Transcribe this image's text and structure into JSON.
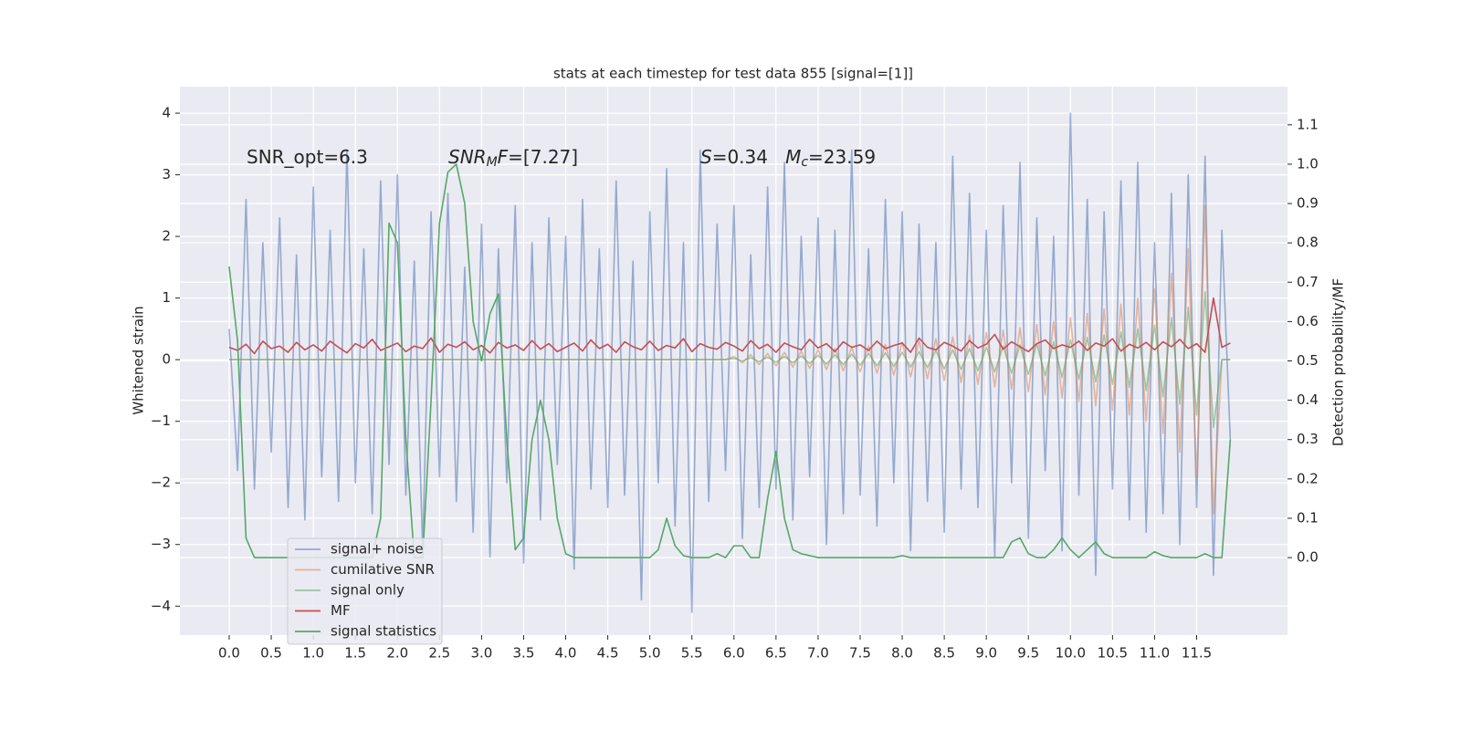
{
  "chart_data": {
    "type": "line",
    "title": "stats at each timestep for test data 855 [signal=[1]]",
    "ylabel": "Whitened strain",
    "y2label": "Detection probability/MF",
    "annotations": [
      [
        {
          "text": "SNR_opt=6.3"
        }
      ],
      [
        {
          "text": "SNR",
          "italic": true
        },
        {
          "text": "M",
          "italic": true,
          "sub": true
        },
        {
          "text": "F",
          "italic": true
        },
        {
          "text": "=[7.27]"
        }
      ],
      [
        {
          "text": "S",
          "italic": true
        },
        {
          "text": "=0.34   "
        },
        {
          "text": "M",
          "italic": true
        },
        {
          "text": "c",
          "italic": true,
          "sub": true
        },
        {
          "text": "=23.59"
        }
      ]
    ],
    "grid": true,
    "x": [
      0,
      0.1,
      0.2,
      0.3,
      0.4,
      0.5,
      0.6,
      0.7,
      0.8,
      0.9,
      1,
      1.1,
      1.2,
      1.3,
      1.4,
      1.5,
      1.6,
      1.7,
      1.8,
      1.9,
      2,
      2.1,
      2.2,
      2.3,
      2.4,
      2.5,
      2.6,
      2.7,
      2.8,
      2.9,
      3,
      3.1,
      3.2,
      3.3,
      3.4,
      3.5,
      3.6,
      3.7,
      3.8,
      3.9,
      4,
      4.1,
      4.2,
      4.3,
      4.4,
      4.5,
      4.6,
      4.7,
      4.8,
      4.9,
      5,
      5.1,
      5.2,
      5.3,
      5.4,
      5.5,
      5.6,
      5.7,
      5.8,
      5.9,
      6,
      6.1,
      6.2,
      6.3,
      6.4,
      6.5,
      6.6,
      6.7,
      6.8,
      6.9,
      7,
      7.1,
      7.2,
      7.3,
      7.4,
      7.5,
      7.6,
      7.7,
      7.8,
      7.9,
      8,
      8.1,
      8.2,
      8.3,
      8.4,
      8.5,
      8.6,
      8.7,
      8.8,
      8.9,
      9,
      9.1,
      9.2,
      9.3,
      9.4,
      9.5,
      9.6,
      9.7,
      9.8,
      9.9,
      10,
      10.1,
      10.2,
      10.3,
      10.4,
      10.5,
      10.6,
      10.7,
      10.8,
      10.9,
      11,
      11.1,
      11.2,
      11.3,
      11.4,
      11.5,
      11.6,
      11.7,
      11.8,
      11.9
    ],
    "series": [
      {
        "name": "signal+ noise",
        "color": "#4c72b0",
        "opacity": 0.55,
        "values": [
          0.5,
          -1.8,
          2.6,
          -2.1,
          1.9,
          -1.5,
          2.3,
          -2.4,
          1.7,
          -2.6,
          2.8,
          -1.9,
          2.1,
          -2.3,
          3.4,
          -2.0,
          1.8,
          -2.5,
          2.9,
          -1.7,
          3.0,
          -2.2,
          1.6,
          -3.1,
          2.4,
          -1.9,
          2.7,
          -2.3,
          1.5,
          -2.8,
          2.2,
          -3.2,
          1.8,
          -2.0,
          2.5,
          -3.3,
          1.9,
          -2.6,
          2.3,
          -1.7,
          2.0,
          -3.4,
          2.6,
          -2.1,
          1.8,
          -2.4,
          2.9,
          -2.2,
          1.6,
          -3.9,
          2.4,
          -2.0,
          3.1,
          -2.7,
          1.9,
          -4.1,
          3.4,
          -2.3,
          2.2,
          -1.8,
          2.5,
          -2.9,
          1.7,
          -2.4,
          2.8,
          -2.1,
          3.2,
          -2.6,
          2.0,
          -1.9,
          2.3,
          -3.0,
          2.1,
          -2.5,
          3.4,
          -2.2,
          1.8,
          -2.7,
          2.6,
          -2.0,
          2.4,
          -3.1,
          2.2,
          -2.3,
          1.9,
          -2.8,
          3.3,
          -2.1,
          2.7,
          -2.4,
          2.1,
          -3.2,
          2.5,
          -2.0,
          3.2,
          -2.9,
          2.3,
          -1.8,
          2.0,
          -3.1,
          4.0,
          -2.2,
          2.6,
          -3.5,
          2.4,
          -2.1,
          2.9,
          -2.6,
          3.2,
          -2.8,
          1.9,
          -2.5,
          2.7,
          -3.0,
          3.0,
          -2.4,
          3.3,
          -3.5,
          2.1,
          -1.3
        ]
      },
      {
        "name": "cumilative SNR",
        "color": "#dd8452",
        "opacity": 0.55,
        "values": [
          0,
          0,
          0,
          0,
          0,
          0,
          0,
          0,
          0,
          0,
          0,
          0,
          0,
          0,
          0,
          0,
          0,
          0,
          0,
          0,
          0,
          0,
          0,
          0,
          0,
          0,
          0,
          0,
          0,
          0,
          0,
          0,
          0,
          0,
          0,
          0,
          0,
          0,
          0,
          0,
          0,
          0,
          0,
          0,
          0,
          0,
          0,
          0,
          0,
          0,
          0,
          0,
          0,
          0,
          0,
          0,
          0,
          0,
          0,
          0,
          0.05,
          -0.05,
          0.08,
          -0.08,
          0.1,
          -0.1,
          0.12,
          -0.12,
          0.14,
          -0.14,
          0.16,
          -0.16,
          0.18,
          -0.18,
          0.2,
          -0.2,
          0.22,
          -0.22,
          0.25,
          -0.25,
          0.28,
          -0.28,
          0.31,
          -0.31,
          0.34,
          -0.34,
          0.37,
          -0.37,
          0.4,
          -0.4,
          0.44,
          -0.44,
          0.48,
          -0.48,
          0.52,
          -0.52,
          0.57,
          -0.57,
          0.62,
          -0.62,
          0.68,
          -0.68,
          0.75,
          -0.75,
          0.82,
          -0.82,
          0.9,
          -0.9,
          1.0,
          -1.0,
          1.15,
          -1.2,
          1.4,
          -1.5,
          1.8,
          -1.9,
          2.5,
          -2.5,
          0,
          0
        ]
      },
      {
        "name": "signal only",
        "color": "#55a868",
        "opacity": 0.55,
        "values": [
          0,
          0,
          0,
          0,
          0,
          0,
          0,
          0,
          0,
          0,
          0,
          0,
          0,
          0,
          0,
          0,
          0,
          0,
          0,
          0,
          0,
          0,
          0,
          0,
          0,
          0,
          0,
          0,
          0,
          0,
          0,
          0,
          0,
          0,
          0,
          0,
          0,
          0,
          0,
          0,
          0,
          0,
          0,
          0,
          0,
          0,
          0,
          0,
          0,
          0,
          0,
          0,
          0,
          0,
          0,
          0,
          0,
          0,
          0,
          0,
          0.02,
          -0.02,
          0.03,
          -0.03,
          0.04,
          -0.04,
          0.05,
          -0.05,
          0.06,
          -0.06,
          0.07,
          -0.07,
          0.08,
          -0.08,
          0.09,
          -0.09,
          0.1,
          -0.1,
          0.11,
          -0.11,
          0.12,
          -0.12,
          0.13,
          -0.13,
          0.15,
          -0.15,
          0.16,
          -0.16,
          0.18,
          -0.18,
          0.2,
          -0.2,
          0.22,
          -0.22,
          0.24,
          -0.24,
          0.26,
          -0.26,
          0.29,
          -0.29,
          0.32,
          -0.32,
          0.36,
          -0.36,
          0.4,
          -0.4,
          0.45,
          -0.45,
          0.5,
          -0.5,
          0.56,
          -0.6,
          0.68,
          -0.72,
          0.85,
          -0.9,
          1.1,
          -1.1,
          0,
          0
        ]
      },
      {
        "name": "MF",
        "color": "#c44e52",
        "opacity": 1,
        "values": [
          0.2,
          0.15,
          0.25,
          0.1,
          0.3,
          0.18,
          0.22,
          0.12,
          0.28,
          0.16,
          0.24,
          0.14,
          0.3,
          0.2,
          0.11,
          0.26,
          0.19,
          0.33,
          0.15,
          0.21,
          0.27,
          0.13,
          0.22,
          0.18,
          0.35,
          0.12,
          0.25,
          0.2,
          0.29,
          0.16,
          0.23,
          0.11,
          0.28,
          0.19,
          0.24,
          0.15,
          0.31,
          0.17,
          0.26,
          0.13,
          0.2,
          0.27,
          0.14,
          0.32,
          0.18,
          0.25,
          0.12,
          0.29,
          0.21,
          0.16,
          0.3,
          0.15,
          0.23,
          0.19,
          0.34,
          0.13,
          0.26,
          0.2,
          0.17,
          0.28,
          0.22,
          0.14,
          0.31,
          0.18,
          0.25,
          0.12,
          0.27,
          0.21,
          0.16,
          0.33,
          0.19,
          0.26,
          0.13,
          0.29,
          0.2,
          0.24,
          0.15,
          0.3,
          0.18,
          0.23,
          0.27,
          0.12,
          0.35,
          0.2,
          0.16,
          0.28,
          0.22,
          0.14,
          0.31,
          0.19,
          0.25,
          0.41,
          0.17,
          0.29,
          0.21,
          0.13,
          0.26,
          0.32,
          0.18,
          0.24,
          0.2,
          0.3,
          0.15,
          0.27,
          0.22,
          0.34,
          0.14,
          0.25,
          0.19,
          0.28,
          0.16,
          0.29,
          0.21,
          0.33,
          0.18,
          0.26,
          0.12,
          1.0,
          0.2,
          0.27
        ]
      },
      {
        "name": "signal statistics",
        "color": "#55a868",
        "opacity": 1,
        "axis": "y2",
        "values": [
          0.74,
          0.55,
          0.05,
          0.0,
          0.0,
          0.0,
          0.0,
          0.0,
          0.0,
          0.0,
          0.0,
          0.0,
          0.0,
          0.0,
          0.0,
          0.0,
          0.0,
          0.0,
          0.1,
          0.85,
          0.8,
          0.3,
          0.0,
          0.0,
          0.4,
          0.85,
          0.98,
          1.0,
          0.9,
          0.6,
          0.5,
          0.62,
          0.67,
          0.3,
          0.02,
          0.05,
          0.3,
          0.4,
          0.3,
          0.1,
          0.01,
          0.0,
          0.0,
          0.0,
          0.0,
          0.0,
          0.0,
          0.0,
          0.0,
          0.0,
          0.0,
          0.02,
          0.1,
          0.03,
          0.005,
          0.0,
          0.0,
          0.0,
          0.01,
          0.0,
          0.03,
          0.03,
          0.0,
          0.0,
          0.15,
          0.27,
          0.1,
          0.02,
          0.01,
          0.005,
          0.0,
          0.0,
          0.0,
          0.0,
          0.0,
          0.0,
          0.0,
          0.0,
          0.0,
          0.0,
          0.005,
          0.0,
          0.0,
          0.0,
          0.0,
          0.0,
          0.0,
          0.0,
          0.0,
          0.0,
          0.0,
          0.0,
          0.0,
          0.04,
          0.05,
          0.01,
          0.0,
          0.0,
          0.02,
          0.05,
          0.02,
          0.0,
          0.02,
          0.04,
          0.01,
          0.0,
          0.0,
          0.0,
          0.0,
          0.0,
          0.015,
          0.005,
          0.0,
          0.0,
          0.0,
          0.0,
          0.01,
          0.0,
          0.0,
          0.3
        ]
      }
    ],
    "xlim": [
      -0.586,
      12.58
    ],
    "xticks": [
      {
        "value": 0,
        "label": "0.0"
      },
      0.5,
      {
        "value": 1,
        "label": "1.0"
      },
      1.5,
      {
        "value": 2,
        "label": "2.0"
      },
      2.5,
      {
        "value": 3,
        "label": "3.0"
      },
      3.5,
      {
        "value": 4,
        "label": "4.0"
      },
      4.5,
      {
        "value": 5,
        "label": "5.0"
      },
      5.5,
      {
        "value": 6,
        "label": "6.0"
      },
      6.5,
      {
        "value": 7,
        "label": "7.0"
      },
      7.5,
      {
        "value": 8,
        "label": "8.0"
      },
      8.5,
      {
        "value": 9,
        "label": "9.0"
      },
      9.5,
      {
        "value": 10,
        "label": "10.0"
      },
      10.5,
      {
        "value": 11,
        "label": "11.0"
      },
      11.5
    ],
    "ylim": [
      -4.47,
      4.43
    ],
    "yticks": [
      {
        "value": -4,
        "label": "−4"
      },
      {
        "value": -3,
        "label": "−3"
      },
      {
        "value": -2,
        "label": "−2"
      },
      {
        "value": -1,
        "label": "−1"
      },
      0,
      1,
      2,
      3,
      4
    ],
    "y2lim": [
      -0.197,
      1.197
    ],
    "y2ticks": [
      {
        "value": 0,
        "label": "0.0"
      },
      0.1,
      0.2,
      0.3,
      0.4,
      0.5,
      0.6,
      0.7,
      0.8,
      0.9,
      {
        "value": 1,
        "label": "1.0"
      },
      1.1
    ]
  }
}
